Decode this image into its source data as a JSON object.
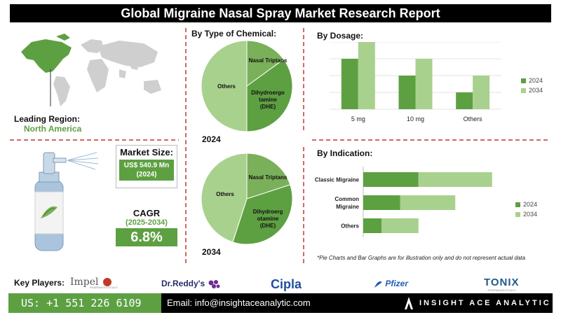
{
  "title": "Global Migraine Nasal Spray Market Research Report",
  "region": {
    "label": "Leading Region:",
    "value": "North America"
  },
  "market_size": {
    "label": "Market Size:",
    "value_line1": "US$ 540.9 Mn",
    "value_line2": "(2024)"
  },
  "cagr": {
    "label": "CAGR",
    "period": "(2025-2034)",
    "value": "6.8%"
  },
  "sections": {
    "chemical": "By  Type of Chemical:",
    "dosage": "By Dosage:",
    "indication": "By Indication:"
  },
  "disclaimer": "*Pie Charts and Bar Graphs are for illustration only and do not represent actual data",
  "key_players": {
    "label": "Key Players:",
    "names": [
      "Impel",
      "Dr.Reddy's",
      "Cipla",
      "Pfizer",
      "TONIX"
    ],
    "impel_sub": "PHARMACEUTICALS",
    "tonix_sub": "PHARMACEUTICALS"
  },
  "footer": {
    "phone": "US: +1 551 226 6109",
    "email": "Email: info@insightaceanalytic.com",
    "brand": "INSIGHT ACE ANALYTIC"
  },
  "colors": {
    "dark_green": "#5da042",
    "light_green": "#a9d18e",
    "mid_green": "#7bb05b",
    "accent_red": "#c0392b"
  },
  "chart_data": [
    {
      "type": "pie",
      "label": "2024",
      "slices": [
        {
          "name": "Nasal Triptans",
          "value": 15
        },
        {
          "name": "Dihydroergotamine (DHE)",
          "value": 35
        },
        {
          "name": "Others",
          "value": 50
        }
      ],
      "slice_labels": [
        "Nasal Triptans",
        "Dihydroergo",
        "tamine",
        "(DHE)",
        "Others"
      ]
    },
    {
      "type": "pie",
      "label": "2034",
      "slices": [
        {
          "name": "Nasal Triptans",
          "value": 20
        },
        {
          "name": "Dihydroergotamine (DHE)",
          "value": 35
        },
        {
          "name": "Others",
          "value": 45
        }
      ],
      "slice_labels": [
        "Nasal Triptans",
        "Dihydroerg",
        "otamine",
        "(DHE)",
        "Others"
      ]
    },
    {
      "type": "bar",
      "title": "By Dosage:",
      "categories": [
        "5 mg",
        "10 mg",
        "Others"
      ],
      "series": [
        {
          "name": "2024",
          "values": [
            3,
            2,
            1
          ]
        },
        {
          "name": "2034",
          "values": [
            4,
            3,
            2
          ]
        }
      ],
      "ylim": [
        0,
        4
      ],
      "grid": true,
      "legend": "right"
    },
    {
      "type": "bar",
      "orientation": "horizontal",
      "stacked": true,
      "title": "By Indication:",
      "categories": [
        "Classic Migraine",
        "Common Migraine",
        "Others"
      ],
      "category_lines": [
        [
          "Classic Migraine"
        ],
        [
          "Common",
          "Migraine"
        ],
        [
          "Others"
        ]
      ],
      "series": [
        {
          "name": "2024",
          "values": [
            3,
            2,
            1
          ]
        },
        {
          "name": "2034",
          "values": [
            4,
            3,
            2
          ]
        }
      ],
      "xlim": [
        0,
        8
      ],
      "legend": "right"
    }
  ]
}
